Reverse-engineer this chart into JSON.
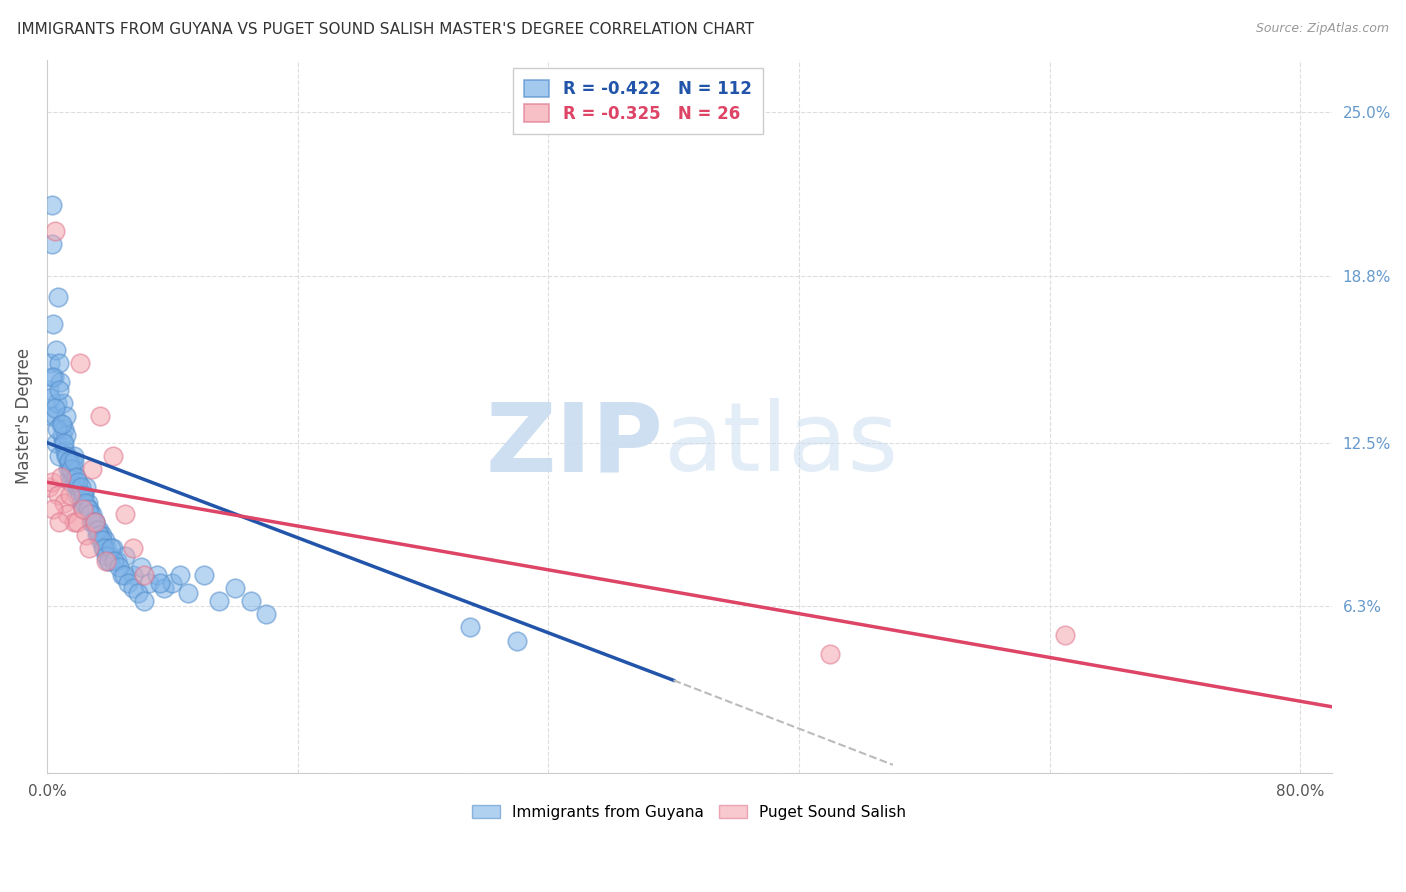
{
  "title": "IMMIGRANTS FROM GUYANA VS PUGET SOUND SALISH MASTER'S DEGREE CORRELATION CHART",
  "source": "Source: ZipAtlas.com",
  "ylabel": "Master's Degree",
  "xlim": [
    0,
    82
  ],
  "ylim": [
    0,
    27.0
  ],
  "y_ticks": [
    0.0,
    6.3,
    12.5,
    18.8,
    25.0
  ],
  "y_tick_labels": [
    "",
    "6.3%",
    "12.5%",
    "18.8%",
    "25.0%"
  ],
  "blue_color": "#7EB3E8",
  "blue_edge_color": "#5590CC",
  "pink_color": "#F4A6B0",
  "pink_edge_color": "#E07890",
  "blue_line_color": "#2255AA",
  "pink_line_color": "#DD4466",
  "dashed_line_color": "#BBBBBB",
  "legend_r_blue": "R = -0.422",
  "legend_n_blue": "N = 112",
  "legend_r_pink": "R = -0.325",
  "legend_n_pink": "N = 26",
  "blue_scatter_x": [
    0.15,
    0.2,
    0.25,
    0.3,
    0.35,
    0.4,
    0.45,
    0.5,
    0.55,
    0.6,
    0.65,
    0.7,
    0.75,
    0.8,
    0.85,
    0.9,
    0.95,
    1.0,
    1.05,
    1.1,
    1.15,
    1.2,
    1.25,
    1.3,
    1.35,
    1.4,
    1.45,
    1.5,
    1.55,
    1.6,
    1.65,
    1.7,
    1.75,
    1.8,
    1.85,
    1.9,
    1.95,
    2.0,
    2.1,
    2.2,
    2.3,
    2.4,
    2.5,
    2.6,
    2.7,
    2.8,
    2.9,
    3.0,
    3.1,
    3.2,
    3.3,
    3.4,
    3.5,
    3.6,
    3.7,
    3.8,
    3.9,
    4.0,
    4.2,
    4.5,
    4.8,
    5.0,
    5.5,
    6.0,
    6.5,
    7.0,
    7.5,
    8.0,
    9.0,
    10.0,
    11.0,
    12.0,
    13.0,
    14.0,
    0.2,
    0.35,
    0.5,
    0.65,
    0.8,
    0.95,
    1.1,
    1.25,
    1.4,
    1.55,
    1.7,
    1.85,
    2.0,
    2.15,
    2.3,
    2.45,
    2.6,
    2.75,
    2.9,
    3.05,
    3.2,
    3.35,
    3.5,
    3.65,
    3.8,
    3.95,
    4.1,
    4.3,
    4.6,
    4.9,
    5.2,
    5.5,
    5.8,
    6.2,
    7.2,
    8.5,
    27.0,
    30.0
  ],
  "blue_scatter_y": [
    14.5,
    15.5,
    13.5,
    21.5,
    20.0,
    17.0,
    15.0,
    13.5,
    12.5,
    16.0,
    14.0,
    18.0,
    12.0,
    15.5,
    14.8,
    13.2,
    12.8,
    14.0,
    12.5,
    13.0,
    12.2,
    13.5,
    12.8,
    12.0,
    11.5,
    11.8,
    11.2,
    11.5,
    11.0,
    11.8,
    11.2,
    12.0,
    11.5,
    11.0,
    11.2,
    10.8,
    10.5,
    10.8,
    10.5,
    10.2,
    10.0,
    10.5,
    10.8,
    10.2,
    10.0,
    9.5,
    9.8,
    9.5,
    9.5,
    9.0,
    9.2,
    8.8,
    9.0,
    8.5,
    8.8,
    8.5,
    8.0,
    8.2,
    8.5,
    8.0,
    7.5,
    8.2,
    7.5,
    7.8,
    7.2,
    7.5,
    7.0,
    7.2,
    6.8,
    7.5,
    6.5,
    7.0,
    6.5,
    6.0,
    14.2,
    15.0,
    13.8,
    13.0,
    14.5,
    13.2,
    12.5,
    12.0,
    11.8,
    11.5,
    11.8,
    11.2,
    11.0,
    10.8,
    10.5,
    10.2,
    10.0,
    9.8,
    9.5,
    9.5,
    9.2,
    9.0,
    8.8,
    8.5,
    8.2,
    8.0,
    8.5,
    8.0,
    7.8,
    7.5,
    7.2,
    7.0,
    6.8,
    6.5,
    7.2,
    7.5,
    5.5,
    5.0
  ],
  "pink_scatter_x": [
    0.15,
    0.3,
    0.5,
    0.7,
    0.9,
    1.1,
    1.3,
    1.5,
    1.7,
    1.9,
    2.1,
    2.3,
    2.5,
    2.7,
    2.9,
    3.1,
    3.4,
    3.8,
    4.2,
    5.0,
    5.5,
    6.2,
    50.0,
    65.0,
    0.4,
    0.8
  ],
  "pink_scatter_y": [
    10.8,
    11.0,
    20.5,
    10.5,
    11.2,
    10.2,
    9.8,
    10.5,
    9.5,
    9.5,
    15.5,
    10.0,
    9.0,
    8.5,
    11.5,
    9.5,
    13.5,
    8.0,
    12.0,
    9.8,
    8.5,
    7.5,
    4.5,
    5.2,
    10.0,
    9.5
  ],
  "blue_line_x0": 0.0,
  "blue_line_y0": 12.5,
  "blue_line_x1": 40.0,
  "blue_line_y1": 3.5,
  "pink_line_x0": 0.0,
  "pink_line_y0": 11.0,
  "pink_line_x1": 82.0,
  "pink_line_y1": 2.5,
  "dashed_line_x0": 40.0,
  "dashed_line_y0": 3.5,
  "dashed_line_x1": 54.0,
  "dashed_line_y1": 0.3,
  "grid_color": "#DDDDDD",
  "bg_color": "#FFFFFF",
  "title_color": "#333333",
  "right_tick_color": "#6699CC"
}
